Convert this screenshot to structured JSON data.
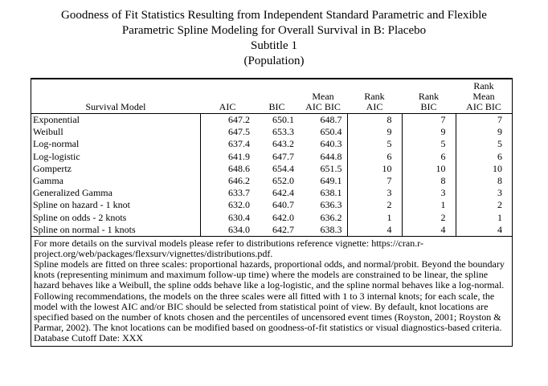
{
  "title": {
    "line1": "Goodness of Fit Statistics Resulting from Independent Standard Parametric and Flexible",
    "line2": "Parametric Spline Modeling for Overall Survival in B: Placebo",
    "line3": "Subtitle 1",
    "line4": "(Population)"
  },
  "table": {
    "headers": {
      "model": "Survival Model",
      "aic": "AIC",
      "bic": "BIC",
      "mean_line1": "Mean",
      "mean_line2": "AIC BIC",
      "rank_aic_line1": "Rank",
      "rank_aic_line2": "AIC",
      "rank_bic_line1": "Rank",
      "rank_bic_line2": "BIC",
      "rank_mean_line1": "Rank",
      "rank_mean_line2": "Mean",
      "rank_mean_line3": "AIC BIC"
    },
    "rows": [
      {
        "model": "Exponential",
        "aic": "647.2",
        "bic": "650.1",
        "mean": "648.7",
        "rank_aic": "8",
        "rank_bic": "7",
        "rank_mean": "7"
      },
      {
        "model": "Weibull",
        "aic": "647.5",
        "bic": "653.3",
        "mean": "650.4",
        "rank_aic": "9",
        "rank_bic": "9",
        "rank_mean": "9"
      },
      {
        "model": "Log-normal",
        "aic": "637.4",
        "bic": "643.2",
        "mean": "640.3",
        "rank_aic": "5",
        "rank_bic": "5",
        "rank_mean": "5"
      },
      {
        "model": "Log-logistic",
        "aic": "641.9",
        "bic": "647.7",
        "mean": "644.8",
        "rank_aic": "6",
        "rank_bic": "6",
        "rank_mean": "6"
      },
      {
        "model": "Gompertz",
        "aic": "648.6",
        "bic": "654.4",
        "mean": "651.5",
        "rank_aic": "10",
        "rank_bic": "10",
        "rank_mean": "10"
      },
      {
        "model": "Gamma",
        "aic": "646.2",
        "bic": "652.0",
        "mean": "649.1",
        "rank_aic": "7",
        "rank_bic": "8",
        "rank_mean": "8"
      },
      {
        "model": "Generalized Gamma",
        "aic": "633.7",
        "bic": "642.4",
        "mean": "638.1",
        "rank_aic": "3",
        "rank_bic": "3",
        "rank_mean": "3"
      },
      {
        "model": "Spline on hazard - 1 knot",
        "aic": "632.0",
        "bic": "640.7",
        "mean": "636.3",
        "rank_aic": "2",
        "rank_bic": "1",
        "rank_mean": "2"
      },
      {
        "model": "Spline on odds - 2 knots",
        "aic": "630.4",
        "bic": "642.0",
        "mean": "636.2",
        "rank_aic": "1",
        "rank_bic": "2",
        "rank_mean": "1"
      },
      {
        "model": "Spline on normal - 1 knots",
        "aic": "634.0",
        "bic": "642.7",
        "mean": "638.3",
        "rank_aic": "4",
        "rank_bic": "4",
        "rank_mean": "4"
      }
    ]
  },
  "footnotes": {
    "p1": "For more details on the survival models please refer to distributions reference vignette: https://cran.r-project.org/web/packages/flexsurv/vignettes/distributions.pdf.",
    "p2": "Spline models are fitted on three scales: proportional hazards, proportional odds, and normal/probit. Beyond the boundary knots (representing minimum and maximum follow-up time) where the models are constrained to be linear, the spline hazard behaves like a Weibull, the spline odds behave like a log-logistic, and the spline normal behaves like a log-normal. Following recommendations, the models on the three scales were all fitted with 1 to 3 internal knots; for each scale, the model with the lowest AIC and/or BIC should be selected from statistical point of view. By default, knot locations are specified based on the number of knots chosen and the percentiles of uncensored event times (Royston, 2001; Royston & Parmar, 2002). The knot locations can be modified based on goodness-of-fit statistics or visual diagnostics-based criteria.",
    "p3": "Database Cutoff Date: XXX"
  }
}
